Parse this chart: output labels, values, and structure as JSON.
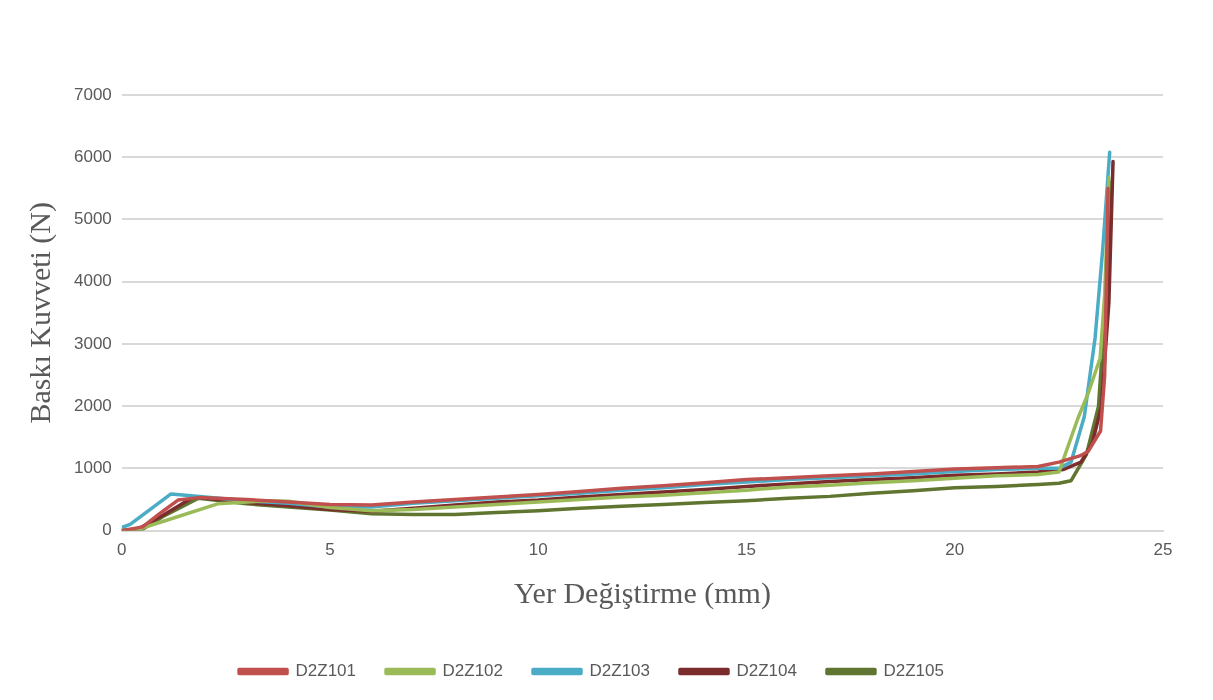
{
  "chart_data": {
    "type": "line",
    "xlabel": "Yer Değiştirme (mm)",
    "ylabel": "Baskı Kuvveti (N)",
    "xlim": [
      0,
      25
    ],
    "xticks": [
      0,
      5,
      10,
      15,
      20,
      25
    ],
    "ylim": [
      0,
      7000
    ],
    "yticks": [
      0,
      1000,
      2000,
      3000,
      4000,
      5000,
      6000,
      7000
    ],
    "grid": "y",
    "legend": "bottom",
    "series": [
      {
        "name": "D2Z101",
        "color": "#c0504d",
        "x": [
          0,
          0.5,
          0.9,
          1.35,
          1.85,
          3,
          4,
          5,
          6,
          7,
          8,
          9,
          10,
          11,
          12,
          13,
          14,
          15,
          16,
          17,
          18,
          19,
          20,
          21,
          22,
          22.5,
          23,
          23.2,
          23.5,
          23.6,
          23.68
        ],
        "values": [
          0,
          60,
          270,
          490,
          530,
          500,
          460,
          420,
          410,
          460,
          500,
          540,
          580,
          630,
          680,
          720,
          770,
          820,
          850,
          880,
          910,
          950,
          990,
          1010,
          1030,
          1100,
          1200,
          1270,
          1600,
          2500,
          5500
        ]
      },
      {
        "name": "D2Z102",
        "color": "#9bbb59",
        "x": [
          0,
          0.3,
          1,
          2.3,
          3.5,
          4,
          5,
          6,
          7,
          8,
          9,
          10,
          11,
          12,
          13,
          14,
          15,
          16,
          17,
          18,
          19,
          20,
          21,
          22,
          22.5,
          22.96,
          23.2,
          23.49,
          23.6,
          23.7
        ],
        "values": [
          0,
          0,
          150,
          430,
          480,
          470,
          370,
          320,
          340,
          380,
          420,
          460,
          500,
          540,
          570,
          610,
          650,
          700,
          730,
          770,
          800,
          840,
          880,
          900,
          940,
          1810,
          2200,
          2770,
          3800,
          5670
        ]
      },
      {
        "name": "D2Z103",
        "color": "#4bacc6",
        "x": [
          0,
          0.2,
          0.7,
          1.18,
          1.67,
          3,
          4,
          5,
          6,
          7,
          8,
          9,
          10,
          11,
          12,
          13,
          14,
          15,
          16,
          17,
          18,
          19,
          20,
          21,
          22,
          22.5,
          22.79,
          23.11,
          23.37,
          23.55,
          23.72
        ],
        "values": [
          50,
          100,
          350,
          590,
          560,
          480,
          440,
          380,
          380,
          440,
          480,
          520,
          560,
          600,
          650,
          690,
          740,
          780,
          820,
          850,
          880,
          910,
          950,
          980,
          1000,
          1000,
          1100,
          1830,
          3100,
          4500,
          6080
        ]
      },
      {
        "name": "D2Z104",
        "color": "#7b2c2c",
        "x": [
          0,
          0.4,
          1,
          1.72,
          3,
          4,
          5,
          6,
          7,
          8,
          9,
          10,
          11,
          12,
          13,
          14,
          15,
          16,
          17,
          18,
          19,
          20,
          21,
          22,
          22.6,
          23.03,
          23.3,
          23.52,
          23.7,
          23.8
        ],
        "values": [
          0,
          30,
          250,
          540,
          450,
          400,
          340,
          310,
          360,
          410,
          460,
          490,
          540,
          580,
          620,
          660,
          710,
          750,
          790,
          820,
          850,
          890,
          910,
          940,
          980,
          1100,
          1400,
          1990,
          3660,
          5930
        ]
      },
      {
        "name": "D2Z105",
        "color": "#5f7530",
        "x": [
          0,
          0.5,
          1,
          1.84,
          3,
          4,
          5,
          6,
          7,
          8,
          9,
          10,
          11,
          12,
          13,
          14,
          15,
          16,
          17,
          18,
          19,
          20,
          21,
          22,
          22.5,
          22.79,
          23.16,
          23.45,
          23.62,
          23.74
        ],
        "values": [
          0,
          20,
          230,
          520,
          430,
          380,
          330,
          270,
          260,
          260,
          290,
          320,
          360,
          390,
          420,
          450,
          480,
          520,
          550,
          600,
          640,
          690,
          710,
          740,
          760,
          800,
          1220,
          1990,
          3660,
          5600
        ]
      }
    ]
  }
}
